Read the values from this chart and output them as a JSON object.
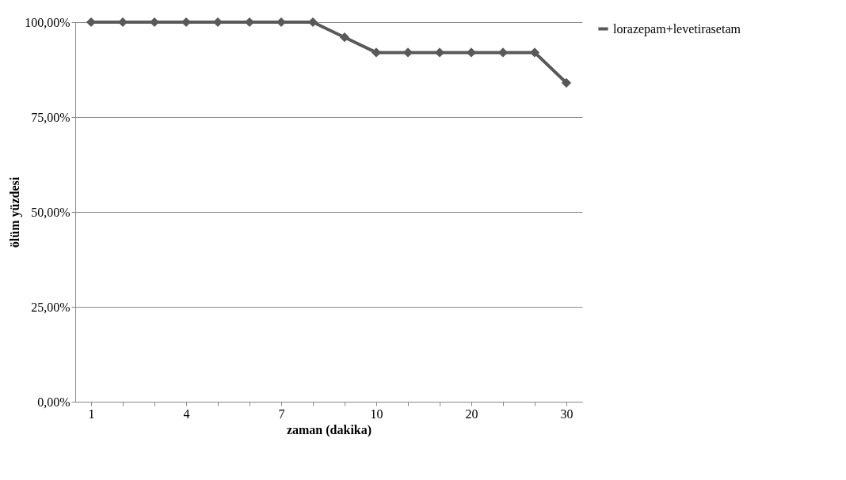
{
  "chart_data": {
    "type": "line",
    "xlabel": "zaman (dakika)",
    "ylabel": "ölüm yüzdesi",
    "categories": [
      "1",
      null,
      null,
      "4",
      null,
      null,
      "7",
      null,
      null,
      "10",
      null,
      null,
      "20",
      null,
      null,
      "30"
    ],
    "series": [
      {
        "name": "lorazepam+levetirasetam",
        "color": "#595959",
        "values": [
          100,
          100,
          100,
          100,
          100,
          100,
          100,
          100,
          96,
          92,
          92,
          92,
          92,
          92,
          92,
          84
        ]
      }
    ],
    "ylim": [
      0,
      100
    ],
    "yticks": [
      {
        "value": 0,
        "label": "0,00%"
      },
      {
        "value": 25,
        "label": "25,00%"
      },
      {
        "value": 50,
        "label": "50,00%"
      },
      {
        "value": 75,
        "label": "75,00%"
      },
      {
        "value": 100,
        "label": "100,00%"
      }
    ],
    "grid": "y",
    "legend": "right",
    "marker": "diamond",
    "line_style": "solid"
  }
}
